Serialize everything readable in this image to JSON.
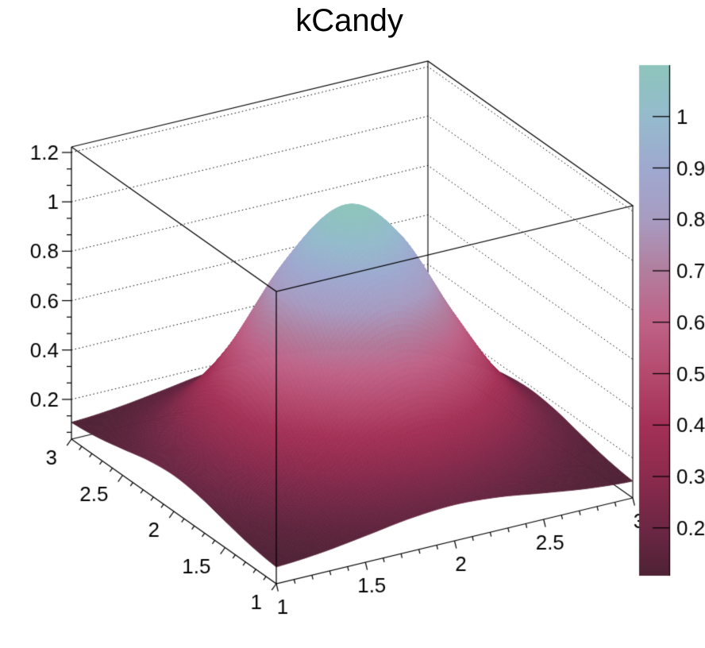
{
  "title": "kCandy",
  "colors": {
    "background": "#ffffff",
    "frame": "#000000",
    "text": "#000000"
  },
  "chart_data": {
    "type": "surface3d",
    "title": "kCandy",
    "x_axis": {
      "min": 1,
      "max": 3,
      "major_ticks": [
        1,
        1.5,
        2,
        2.5,
        3
      ],
      "major_tick_labels": [
        "1",
        "1.5",
        "2",
        "2.5",
        "3"
      ],
      "minor_tick_step": 0.1
    },
    "y_axis": {
      "min": 1,
      "max": 3,
      "major_ticks": [
        1,
        1.5,
        2,
        2.5,
        3
      ],
      "major_tick_labels": [
        "1",
        "1.5",
        "2",
        "2.5",
        "3"
      ],
      "minor_tick_step": 0.1
    },
    "z_axis": {
      "major_ticks": [
        0.2,
        0.4,
        0.6,
        0.8,
        1.0,
        1.2
      ],
      "major_tick_labels": [
        "0.2",
        "0.4",
        "0.6",
        "0.8",
        "1",
        "1.2"
      ],
      "minor_subdivisions": 3,
      "grid": "dotted"
    },
    "surface": {
      "x_points": [
        1,
        1.25,
        1.5,
        1.75,
        2,
        2.25,
        2.5,
        2.75,
        3
      ],
      "y_points": [
        1,
        1.25,
        1.5,
        1.75,
        2,
        2.25,
        2.5,
        2.75,
        3
      ],
      "z_grid": [
        [
          0.107,
          0.121,
          0.146,
          0.173,
          0.185,
          0.173,
          0.146,
          0.121,
          0.107
        ],
        [
          0.121,
          0.162,
          0.235,
          0.314,
          0.349,
          0.314,
          0.235,
          0.162,
          0.121
        ],
        [
          0.146,
          0.235,
          0.391,
          0.562,
          0.639,
          0.562,
          0.391,
          0.235,
          0.146
        ],
        [
          0.173,
          0.314,
          0.562,
          0.834,
          0.957,
          0.834,
          0.562,
          0.314,
          0.173
        ],
        [
          0.185,
          0.349,
          0.639,
          0.957,
          1.1,
          0.957,
          0.639,
          0.349,
          0.185
        ],
        [
          0.173,
          0.314,
          0.562,
          0.834,
          0.957,
          0.834,
          0.562,
          0.314,
          0.173
        ],
        [
          0.146,
          0.235,
          0.391,
          0.562,
          0.639,
          0.562,
          0.391,
          0.235,
          0.146
        ],
        [
          0.121,
          0.162,
          0.235,
          0.314,
          0.349,
          0.314,
          0.235,
          0.162,
          0.121
        ],
        [
          0.107,
          0.121,
          0.146,
          0.173,
          0.185,
          0.173,
          0.146,
          0.121,
          0.107
        ]
      ],
      "z_min": 0.107,
      "z_max": 1.1
    },
    "palette": {
      "name": "kCandy",
      "stops": [
        {
          "t": 0.0,
          "color": "#4f2236"
        },
        {
          "t": 0.094,
          "color": "#6d2744"
        },
        {
          "t": 0.194,
          "color": "#8c2b4d"
        },
        {
          "t": 0.295,
          "color": "#a43157"
        },
        {
          "t": 0.396,
          "color": "#b44a6e"
        },
        {
          "t": 0.496,
          "color": "#bf6287"
        },
        {
          "t": 0.597,
          "color": "#b27e9e"
        },
        {
          "t": 0.698,
          "color": "#a89cc2"
        },
        {
          "t": 0.799,
          "color": "#9fa9d0"
        },
        {
          "t": 0.899,
          "color": "#95bbcd"
        },
        {
          "t": 1.0,
          "color": "#8ec5bc"
        }
      ],
      "bar_ticks": [
        0.2,
        0.3,
        0.4,
        0.5,
        0.6,
        0.7,
        0.8,
        0.9,
        1.0
      ],
      "bar_tick_labels": [
        "0.2",
        "0.3",
        "0.4",
        "0.5",
        "0.6",
        "0.7",
        "0.8",
        "0.9",
        "1"
      ]
    }
  }
}
